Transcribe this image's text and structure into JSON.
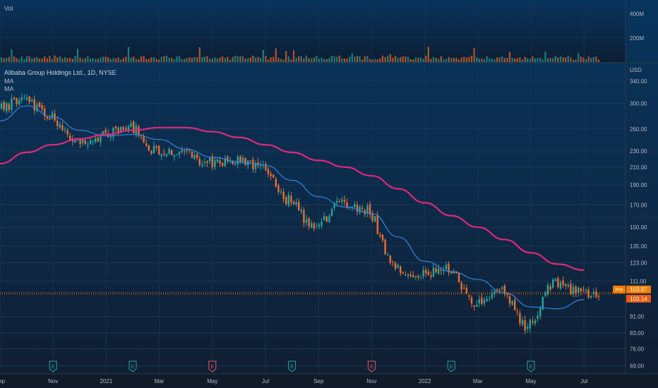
{
  "header": {
    "vol_label": "Vol",
    "title": "Alibaba Group Holdings Ltd., 1D, NYSE",
    "ma_labels": [
      "MA",
      "MA"
    ],
    "currency": "USD"
  },
  "price_badges": {
    "pre_label": "Pre",
    "pre_value": "103.97",
    "last_value": "103.14"
  },
  "colors": {
    "up": "#26a69a",
    "down": "#ef6c2d",
    "ma_fast": "#2e86de",
    "ma_slow": "#e0287a",
    "pre_badge": "#f57c00",
    "last_badge": "#e8590c",
    "earnings_green": "#26a69a",
    "earnings_red": "#ef5350"
  },
  "chart_data": {
    "type": "candlestick",
    "title": "Alibaba Group Holdings Ltd., 1D, NYSE",
    "ylabel": "USD",
    "y_scale": "log",
    "ylim": [
      66,
      375
    ],
    "y_ticks": [
      340,
      300,
      260,
      230,
      210,
      190,
      170,
      150,
      135,
      123,
      111,
      91,
      83,
      76,
      69
    ],
    "x_ticks": [
      "Sep",
      "Nov",
      "2021",
      "Mar",
      "May",
      "Jul",
      "Sep",
      "Nov",
      "2022",
      "Mar",
      "May",
      "Jul"
    ],
    "volume_ticks": [
      "400M",
      "200M"
    ],
    "volume_ylim": [
      0,
      480
    ],
    "price_key_points": [
      {
        "month": "2020-09",
        "price": 290
      },
      {
        "month": "2020-10",
        "price": 305
      },
      {
        "month": "2020-11",
        "price": 280
      },
      {
        "month": "2020-12",
        "price": 240
      },
      {
        "month": "2021-01",
        "price": 250
      },
      {
        "month": "2021-02",
        "price": 265
      },
      {
        "month": "2021-03",
        "price": 232
      },
      {
        "month": "2021-04",
        "price": 230
      },
      {
        "month": "2021-05",
        "price": 215
      },
      {
        "month": "2021-06",
        "price": 218
      },
      {
        "month": "2021-07",
        "price": 208
      },
      {
        "month": "2021-08",
        "price": 175
      },
      {
        "month": "2021-09",
        "price": 150
      },
      {
        "month": "2021-10",
        "price": 170
      },
      {
        "month": "2021-11",
        "price": 165
      },
      {
        "month": "2021-12",
        "price": 120
      },
      {
        "month": "2022-01",
        "price": 115
      },
      {
        "month": "2022-02",
        "price": 120
      },
      {
        "month": "2022-03",
        "price": 98
      },
      {
        "month": "2022-04",
        "price": 105
      },
      {
        "month": "2022-05",
        "price": 86
      },
      {
        "month": "2022-06",
        "price": 110
      },
      {
        "month": "2022-07",
        "price": 104
      }
    ],
    "series": [
      {
        "name": "MA",
        "color": "#2e86de",
        "values": [
          272,
          296,
          278,
          258,
          250,
          252,
          245,
          232,
          222,
          216,
          212,
          195,
          178,
          168,
          162,
          142,
          124,
          117,
          112,
          104,
          96,
          95,
          100
        ]
      },
      {
        "name": "MA",
        "color": "#e0287a",
        "values": [
          214,
          228,
          238,
          246,
          252,
          258,
          262,
          262,
          256,
          248,
          238,
          228,
          218,
          210,
          200,
          186,
          172,
          160,
          150,
          140,
          130,
          122,
          118
        ]
      }
    ],
    "pre_price": 103.97,
    "last_price": 103.14,
    "earnings": [
      {
        "label": "E",
        "month": "2020-11",
        "type": "green"
      },
      {
        "label": "E",
        "month": "2021-02",
        "type": "green"
      },
      {
        "label": "E",
        "month": "2021-05",
        "type": "red"
      },
      {
        "label": "E",
        "month": "2021-08",
        "type": "green"
      },
      {
        "label": "E",
        "month": "2021-11",
        "type": "red"
      },
      {
        "label": "E",
        "month": "2022-02",
        "type": "green"
      },
      {
        "label": "E",
        "month": "2022-05",
        "type": "green"
      }
    ],
    "grid": true
  }
}
